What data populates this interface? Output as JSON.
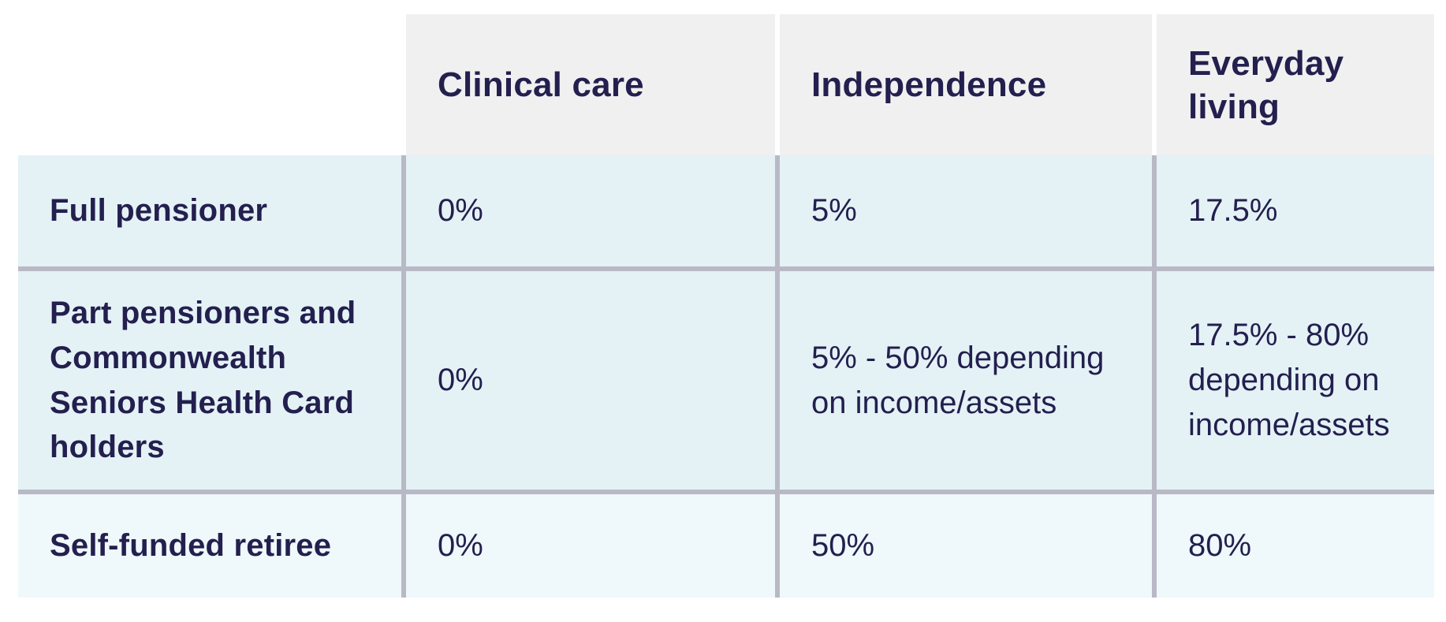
{
  "colors": {
    "header_bg": "#f0f0f0",
    "row_bg": "#e4f2f6",
    "row_alt_bg": "#eff8fa",
    "divider": "#b9b9c6",
    "text": "#231f4e",
    "page_bg": "#ffffff"
  },
  "table": {
    "columns": [
      "Clinical care",
      "Independence",
      "Everyday living"
    ],
    "rows": [
      {
        "label": "Full pensioner",
        "values": [
          "0%",
          "5%",
          "17.5%"
        ]
      },
      {
        "label": "Part pensioners and Commonwealth Seniors Health Card holders",
        "values": [
          "0%",
          "5% - 50% depending on income/assets",
          "17.5% - 80% depending on income/assets"
        ]
      },
      {
        "label": "Self-funded retiree",
        "values": [
          "0%",
          "50%",
          "80%"
        ]
      }
    ]
  },
  "chart_data": {
    "type": "table",
    "title": "",
    "column_headers": [
      "",
      "Clinical care",
      "Independence",
      "Everyday living"
    ],
    "row_headers": [
      "Full pensioner",
      "Part pensioners and Commonwealth Seniors Health Card holders",
      "Self-funded retiree"
    ],
    "cells": [
      [
        "0%",
        "5%",
        "17.5%"
      ],
      [
        "0%",
        "5% - 50% depending on income/assets",
        "17.5% - 80% depending on income/assets"
      ],
      [
        "0%",
        "50%",
        "80%"
      ]
    ]
  }
}
